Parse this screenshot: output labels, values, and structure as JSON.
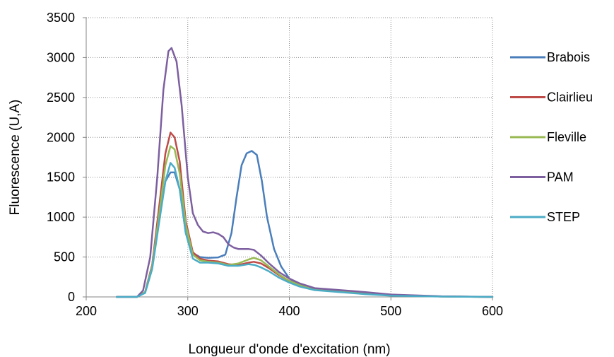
{
  "chart_data": {
    "type": "line",
    "title": "",
    "xlabel": "Longueur d'onde d'excitation (nm)",
    "ylabel": "Fluorescence (U,A)",
    "xlim": [
      200,
      600
    ],
    "ylim": [
      0,
      3500
    ],
    "xticks": [
      200,
      300,
      400,
      500,
      600
    ],
    "yticks": [
      0,
      500,
      1000,
      1500,
      2000,
      2500,
      3000,
      3500
    ],
    "x_tick_labels": [
      "200",
      "300",
      "400",
      "500",
      "600"
    ],
    "y_tick_labels": [
      "0",
      "500",
      "1000",
      "1500",
      "2000",
      "2500",
      "3000",
      "3500"
    ],
    "grid": true,
    "grid_style": "dotted",
    "legend_position": "right",
    "series": [
      {
        "name": "Brabois",
        "color": "#4a7ebb",
        "points": [
          [
            230,
            0
          ],
          [
            250,
            0
          ],
          [
            258,
            60
          ],
          [
            265,
            400
          ],
          [
            272,
            1000
          ],
          [
            278,
            1450
          ],
          [
            283,
            1560
          ],
          [
            287,
            1560
          ],
          [
            292,
            1350
          ],
          [
            298,
            800
          ],
          [
            305,
            550
          ],
          [
            312,
            500
          ],
          [
            320,
            490
          ],
          [
            330,
            495
          ],
          [
            337,
            530
          ],
          [
            343,
            800
          ],
          [
            348,
            1250
          ],
          [
            353,
            1650
          ],
          [
            358,
            1800
          ],
          [
            363,
            1830
          ],
          [
            368,
            1780
          ],
          [
            373,
            1450
          ],
          [
            378,
            1000
          ],
          [
            385,
            600
          ],
          [
            392,
            380
          ],
          [
            400,
            230
          ],
          [
            410,
            150
          ],
          [
            425,
            100
          ],
          [
            450,
            80
          ],
          [
            475,
            50
          ],
          [
            500,
            20
          ],
          [
            550,
            5
          ],
          [
            600,
            0
          ]
        ]
      },
      {
        "name": "Clairlieu",
        "color": "#be4b48",
        "points": [
          [
            230,
            0
          ],
          [
            250,
            0
          ],
          [
            258,
            60
          ],
          [
            265,
            400
          ],
          [
            272,
            1150
          ],
          [
            278,
            1800
          ],
          [
            283,
            2060
          ],
          [
            287,
            2000
          ],
          [
            292,
            1700
          ],
          [
            298,
            950
          ],
          [
            305,
            560
          ],
          [
            312,
            480
          ],
          [
            320,
            455
          ],
          [
            330,
            445
          ],
          [
            340,
            410
          ],
          [
            350,
            400
          ],
          [
            360,
            430
          ],
          [
            365,
            440
          ],
          [
            372,
            420
          ],
          [
            380,
            360
          ],
          [
            390,
            270
          ],
          [
            400,
            200
          ],
          [
            410,
            150
          ],
          [
            425,
            100
          ],
          [
            450,
            75
          ],
          [
            475,
            45
          ],
          [
            500,
            20
          ],
          [
            550,
            5
          ],
          [
            600,
            0
          ]
        ]
      },
      {
        "name": "Fleville",
        "color": "#98b954",
        "points": [
          [
            230,
            0
          ],
          [
            250,
            0
          ],
          [
            258,
            60
          ],
          [
            265,
            380
          ],
          [
            272,
            1050
          ],
          [
            278,
            1650
          ],
          [
            283,
            1890
          ],
          [
            287,
            1850
          ],
          [
            292,
            1550
          ],
          [
            298,
            900
          ],
          [
            305,
            530
          ],
          [
            312,
            460
          ],
          [
            320,
            440
          ],
          [
            330,
            430
          ],
          [
            340,
            400
          ],
          [
            350,
            420
          ],
          [
            360,
            470
          ],
          [
            365,
            490
          ],
          [
            372,
            460
          ],
          [
            380,
            380
          ],
          [
            390,
            280
          ],
          [
            400,
            200
          ],
          [
            410,
            150
          ],
          [
            425,
            100
          ],
          [
            450,
            75
          ],
          [
            475,
            45
          ],
          [
            500,
            20
          ],
          [
            550,
            5
          ],
          [
            600,
            0
          ]
        ]
      },
      {
        "name": "PAM",
        "color": "#7d5fa0",
        "points": [
          [
            230,
            0
          ],
          [
            250,
            0
          ],
          [
            256,
            80
          ],
          [
            263,
            500
          ],
          [
            270,
            1500
          ],
          [
            276,
            2600
          ],
          [
            281,
            3080
          ],
          [
            284,
            3120
          ],
          [
            289,
            2950
          ],
          [
            294,
            2400
          ],
          [
            300,
            1500
          ],
          [
            305,
            1050
          ],
          [
            310,
            900
          ],
          [
            315,
            820
          ],
          [
            320,
            800
          ],
          [
            325,
            810
          ],
          [
            330,
            790
          ],
          [
            335,
            750
          ],
          [
            340,
            660
          ],
          [
            345,
            620
          ],
          [
            350,
            600
          ],
          [
            360,
            600
          ],
          [
            365,
            590
          ],
          [
            372,
            520
          ],
          [
            380,
            420
          ],
          [
            390,
            310
          ],
          [
            400,
            230
          ],
          [
            410,
            170
          ],
          [
            425,
            110
          ],
          [
            450,
            85
          ],
          [
            475,
            60
          ],
          [
            500,
            30
          ],
          [
            550,
            8
          ],
          [
            600,
            0
          ]
        ]
      },
      {
        "name": "STEP",
        "color": "#4bacc6",
        "points": [
          [
            230,
            0
          ],
          [
            250,
            0
          ],
          [
            258,
            50
          ],
          [
            265,
            350
          ],
          [
            272,
            950
          ],
          [
            278,
            1450
          ],
          [
            283,
            1680
          ],
          [
            287,
            1620
          ],
          [
            292,
            1350
          ],
          [
            298,
            800
          ],
          [
            305,
            480
          ],
          [
            312,
            430
          ],
          [
            320,
            430
          ],
          [
            330,
            420
          ],
          [
            340,
            390
          ],
          [
            350,
            390
          ],
          [
            360,
            410
          ],
          [
            366,
            400
          ],
          [
            372,
            370
          ],
          [
            380,
            320
          ],
          [
            390,
            240
          ],
          [
            400,
            180
          ],
          [
            410,
            130
          ],
          [
            425,
            85
          ],
          [
            450,
            60
          ],
          [
            475,
            35
          ],
          [
            500,
            15
          ],
          [
            550,
            4
          ],
          [
            600,
            0
          ]
        ]
      }
    ]
  }
}
